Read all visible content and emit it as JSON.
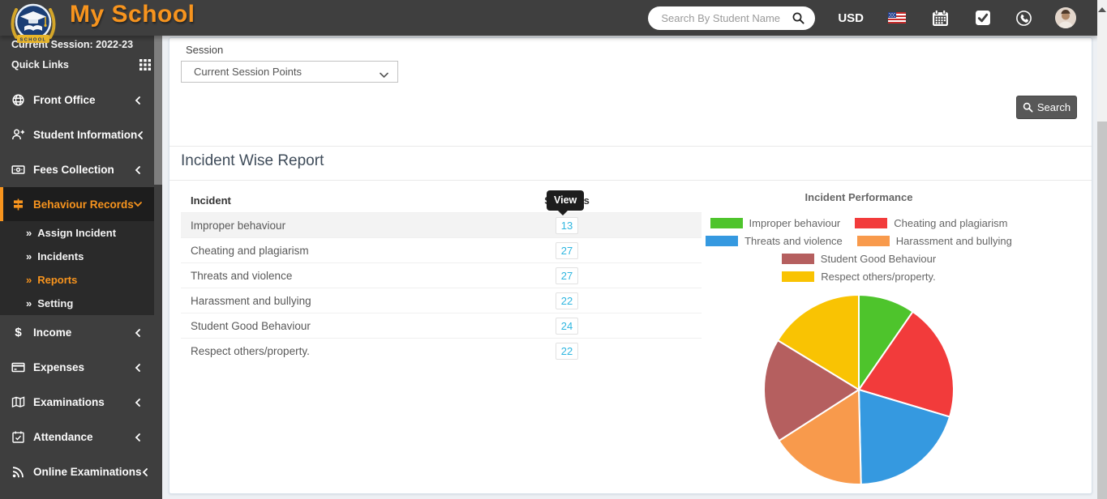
{
  "header": {
    "brand": "My School",
    "logo_text": "SCHOOL",
    "search_placeholder": "Search By Student Name",
    "currency": "USD",
    "icons": [
      "search-icon",
      "us-flag-icon",
      "calendar-icon",
      "tasks-icon",
      "whatsapp-icon",
      "avatar"
    ]
  },
  "sidebar": {
    "current_session": "Current Session: 2022-23",
    "quick_links": "Quick Links",
    "items": [
      {
        "label": "Front Office",
        "icon": "front-office-icon"
      },
      {
        "label": "Student Information",
        "icon": "student-add-icon"
      },
      {
        "label": "Fees Collection",
        "icon": "fees-icon"
      },
      {
        "label": "Behaviour Records",
        "icon": "signpost-icon",
        "active": true
      },
      {
        "label": "Income",
        "icon": "dollar-icon"
      },
      {
        "label": "Expenses",
        "icon": "credit-card-icon"
      },
      {
        "label": "Examinations",
        "icon": "map-icon"
      },
      {
        "label": "Attendance",
        "icon": "calendar-check-icon"
      },
      {
        "label": "Online Examinations",
        "icon": "rss-icon"
      }
    ],
    "behaviour_submenu": [
      {
        "label": "Assign Incident",
        "active": false
      },
      {
        "label": "Incidents",
        "active": false
      },
      {
        "label": "Reports",
        "active": true
      },
      {
        "label": "Setting",
        "active": false
      }
    ]
  },
  "filters": {
    "session_label": "Session",
    "session_value": "Current Session Points",
    "search_button": "Search"
  },
  "report": {
    "title": "Incident Wise Report",
    "tooltip": "View",
    "table": {
      "columns": [
        "Incident",
        "Students"
      ],
      "rows": [
        {
          "label": "Improper behaviour",
          "value": "13"
        },
        {
          "label": "Cheating and plagiarism",
          "value": "27"
        },
        {
          "label": "Threats and violence",
          "value": "27"
        },
        {
          "label": "Harassment and bullying",
          "value": "22"
        },
        {
          "label": "Student Good Behaviour",
          "value": "24"
        },
        {
          "label": "Respect others/property.",
          "value": "22"
        }
      ]
    }
  },
  "chart_data": {
    "type": "pie",
    "title": "Incident Performance",
    "labels": [
      "Improper behaviour",
      "Cheating and plagiarism",
      "Threats and violence",
      "Harassment and bullying",
      "Student Good Behaviour",
      "Respect others/property."
    ],
    "values": [
      13,
      27,
      27,
      22,
      24,
      22
    ],
    "colors": [
      "#4ec42c",
      "#f23b3b",
      "#3599e0",
      "#f89a4c",
      "#b55f5f",
      "#f9c303"
    ],
    "start_angle_deg": -90,
    "direction": "clockwise",
    "legend_position": "top",
    "slice_stroke": "#ffffff"
  },
  "theme": {
    "accent_orange": "#f7941e",
    "link_cyan": "#2eb6e0",
    "header_bg": "#3f3f3f",
    "sidebar_bg": "#3e3e3e"
  }
}
